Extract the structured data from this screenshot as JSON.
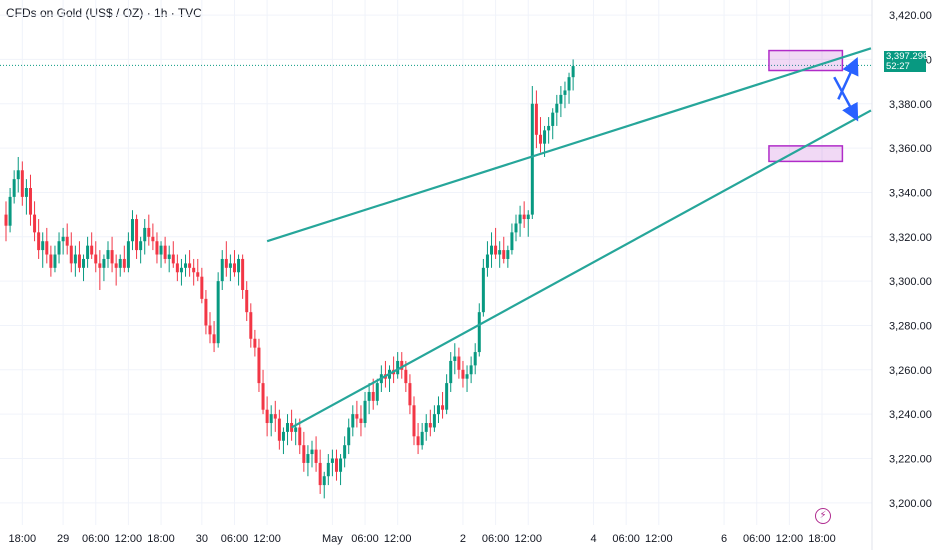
{
  "header": {
    "title": "CFDs on Gold (US$ / OZ) · 1h · TVC"
  },
  "price_tag": {
    "price": "3,397.296",
    "countdown": "52:27"
  },
  "chart_data": {
    "type": "candlestick",
    "title": "CFDs on Gold (US$ / OZ) · 1h · TVC",
    "ylim": [
      3190,
      3425
    ],
    "y_ticks": [
      "3,200.000",
      "3,220.000",
      "3,240.000",
      "3,260.000",
      "3,280.000",
      "3,300.000",
      "3,320.000",
      "3,340.000",
      "3,360.000",
      "3,380.000",
      "3,400.000",
      "3,420.000"
    ],
    "y_tick_values": [
      3200,
      3220,
      3240,
      3260,
      3280,
      3300,
      3320,
      3340,
      3360,
      3380,
      3400,
      3420
    ],
    "x_ticks": [
      "18:00",
      "29",
      "06:00",
      "12:00",
      "18:00",
      "30",
      "06:00",
      "12:00",
      "May",
      "06:00",
      "12:00",
      "2",
      "06:00",
      "12:00",
      "4",
      "06:00",
      "12:00",
      "6",
      "06:00",
      "12:00",
      "18:00"
    ],
    "x_tick_index": [
      4,
      14,
      22,
      30,
      38,
      48,
      56,
      64,
      80,
      88,
      96,
      112,
      120,
      128,
      144,
      152,
      160,
      176,
      184,
      192,
      200
    ],
    "last_price": 3397.296,
    "colors": {
      "up": "#089981",
      "down": "#f23645",
      "trend": "#26a69a",
      "zone": "#b02cc8",
      "arrow": "#2962ff"
    },
    "trendlines": [
      {
        "from": [
          64,
          3318
        ],
        "to": [
          212,
          3405
        ]
      },
      {
        "from": [
          70,
          3234
        ],
        "to": [
          212,
          3377
        ]
      }
    ],
    "zones": [
      {
        "x": [
          187,
          205
        ],
        "y": [
          3395,
          3404
        ]
      },
      {
        "x": [
          187,
          205
        ],
        "y": [
          3354,
          3361
        ]
      }
    ],
    "arrows": [
      {
        "from": [
          203,
          3392
        ],
        "to": [
          208,
          3375
        ]
      },
      {
        "from": [
          204,
          3382
        ],
        "to": [
          208,
          3398
        ]
      }
    ],
    "candles": [
      [
        3330,
        3336,
        3318,
        3325
      ],
      [
        3325,
        3342,
        3322,
        3338
      ],
      [
        3338,
        3350,
        3335,
        3346
      ],
      [
        3346,
        3356,
        3340,
        3350
      ],
      [
        3350,
        3354,
        3334,
        3338
      ],
      [
        3338,
        3346,
        3330,
        3342
      ],
      [
        3342,
        3348,
        3325,
        3330
      ],
      [
        3330,
        3336,
        3318,
        3322
      ],
      [
        3322,
        3328,
        3310,
        3314
      ],
      [
        3314,
        3322,
        3306,
        3318
      ],
      [
        3318,
        3324,
        3308,
        3312
      ],
      [
        3312,
        3316,
        3302,
        3306
      ],
      [
        3306,
        3316,
        3304,
        3312
      ],
      [
        3312,
        3322,
        3308,
        3318
      ],
      [
        3318,
        3324,
        3312,
        3320
      ],
      [
        3320,
        3326,
        3312,
        3316
      ],
      [
        3316,
        3322,
        3304,
        3308
      ],
      [
        3308,
        3316,
        3302,
        3312
      ],
      [
        3312,
        3318,
        3304,
        3306
      ],
      [
        3306,
        3312,
        3300,
        3310
      ],
      [
        3310,
        3320,
        3306,
        3316
      ],
      [
        3316,
        3322,
        3310,
        3312
      ],
      [
        3312,
        3318,
        3304,
        3308
      ],
      [
        3308,
        3314,
        3296,
        3306
      ],
      [
        3306,
        3312,
        3300,
        3310
      ],
      [
        3310,
        3318,
        3306,
        3314
      ],
      [
        3314,
        3320,
        3304,
        3308
      ],
      [
        3308,
        3312,
        3298,
        3306
      ],
      [
        3306,
        3312,
        3302,
        3310
      ],
      [
        3310,
        3316,
        3304,
        3306
      ],
      [
        3306,
        3322,
        3304,
        3318
      ],
      [
        3318,
        3332,
        3314,
        3328
      ],
      [
        3328,
        3330,
        3310,
        3314
      ],
      [
        3314,
        3320,
        3308,
        3318
      ],
      [
        3318,
        3328,
        3312,
        3324
      ],
      [
        3324,
        3330,
        3316,
        3320
      ],
      [
        3320,
        3326,
        3314,
        3318
      ],
      [
        3318,
        3322,
        3308,
        3312
      ],
      [
        3312,
        3318,
        3306,
        3316
      ],
      [
        3316,
        3320,
        3308,
        3310
      ],
      [
        3310,
        3316,
        3304,
        3312
      ],
      [
        3312,
        3318,
        3306,
        3308
      ],
      [
        3308,
        3312,
        3300,
        3304
      ],
      [
        3304,
        3310,
        3298,
        3306
      ],
      [
        3306,
        3312,
        3302,
        3308
      ],
      [
        3308,
        3314,
        3302,
        3306
      ],
      [
        3306,
        3310,
        3298,
        3304
      ],
      [
        3304,
        3310,
        3300,
        3302
      ],
      [
        3302,
        3306,
        3290,
        3292
      ],
      [
        3292,
        3296,
        3276,
        3280
      ],
      [
        3280,
        3286,
        3272,
        3276
      ],
      [
        3276,
        3282,
        3268,
        3272
      ],
      [
        3272,
        3304,
        3270,
        3300
      ],
      [
        3300,
        3314,
        3296,
        3310
      ],
      [
        3310,
        3318,
        3302,
        3306
      ],
      [
        3306,
        3312,
        3300,
        3308
      ],
      [
        3308,
        3314,
        3302,
        3304
      ],
      [
        3304,
        3312,
        3298,
        3310
      ],
      [
        3310,
        3312,
        3292,
        3296
      ],
      [
        3296,
        3300,
        3282,
        3286
      ],
      [
        3286,
        3290,
        3270,
        3274
      ],
      [
        3274,
        3278,
        3266,
        3270
      ],
      [
        3270,
        3274,
        3250,
        3254
      ],
      [
        3254,
        3260,
        3240,
        3242
      ],
      [
        3242,
        3248,
        3230,
        3236
      ],
      [
        3236,
        3244,
        3230,
        3240
      ],
      [
        3240,
        3246,
        3232,
        3238
      ],
      [
        3238,
        3242,
        3224,
        3228
      ],
      [
        3228,
        3234,
        3222,
        3232
      ],
      [
        3232,
        3240,
        3226,
        3236
      ],
      [
        3236,
        3242,
        3228,
        3232
      ],
      [
        3232,
        3238,
        3226,
        3234
      ],
      [
        3234,
        3238,
        3222,
        3226
      ],
      [
        3226,
        3232,
        3214,
        3218
      ],
      [
        3218,
        3226,
        3212,
        3222
      ],
      [
        3222,
        3228,
        3216,
        3224
      ],
      [
        3224,
        3230,
        3214,
        3218
      ],
      [
        3218,
        3224,
        3204,
        3208
      ],
      [
        3208,
        3214,
        3202,
        3212
      ],
      [
        3212,
        3222,
        3208,
        3218
      ],
      [
        3218,
        3224,
        3212,
        3220
      ],
      [
        3220,
        3224,
        3210,
        3214
      ],
      [
        3214,
        3222,
        3208,
        3220
      ],
      [
        3220,
        3230,
        3216,
        3226
      ],
      [
        3226,
        3238,
        3222,
        3234
      ],
      [
        3234,
        3244,
        3230,
        3240
      ],
      [
        3240,
        3246,
        3234,
        3238
      ],
      [
        3238,
        3244,
        3230,
        3236
      ],
      [
        3236,
        3250,
        3234,
        3246
      ],
      [
        3246,
        3254,
        3240,
        3250
      ],
      [
        3250,
        3256,
        3242,
        3246
      ],
      [
        3246,
        3256,
        3244,
        3254
      ],
      [
        3254,
        3262,
        3250,
        3258
      ],
      [
        3258,
        3264,
        3252,
        3256
      ],
      [
        3256,
        3262,
        3250,
        3260
      ],
      [
        3260,
        3266,
        3254,
        3258
      ],
      [
        3258,
        3268,
        3256,
        3264
      ],
      [
        3264,
        3268,
        3256,
        3260
      ],
      [
        3260,
        3264,
        3250,
        3254
      ],
      [
        3254,
        3258,
        3240,
        3244
      ],
      [
        3244,
        3248,
        3226,
        3230
      ],
      [
        3230,
        3236,
        3222,
        3226
      ],
      [
        3226,
        3236,
        3224,
        3232
      ],
      [
        3232,
        3240,
        3228,
        3236
      ],
      [
        3236,
        3242,
        3230,
        3234
      ],
      [
        3234,
        3244,
        3232,
        3240
      ],
      [
        3240,
        3248,
        3236,
        3244
      ],
      [
        3244,
        3250,
        3238,
        3242
      ],
      [
        3242,
        3258,
        3240,
        3254
      ],
      [
        3254,
        3268,
        3250,
        3264
      ],
      [
        3264,
        3272,
        3258,
        3266
      ],
      [
        3266,
        3270,
        3256,
        3260
      ],
      [
        3260,
        3264,
        3252,
        3256
      ],
      [
        3256,
        3262,
        3250,
        3258
      ],
      [
        3258,
        3266,
        3254,
        3262
      ],
      [
        3262,
        3272,
        3258,
        3268
      ],
      [
        3268,
        3290,
        3266,
        3286
      ],
      [
        3286,
        3310,
        3284,
        3306
      ],
      [
        3306,
        3318,
        3302,
        3312
      ],
      [
        3312,
        3322,
        3306,
        3316
      ],
      [
        3316,
        3324,
        3310,
        3312
      ],
      [
        3312,
        3318,
        3306,
        3314
      ],
      [
        3314,
        3320,
        3308,
        3310
      ],
      [
        3310,
        3316,
        3306,
        3314
      ],
      [
        3314,
        3326,
        3312,
        3322
      ],
      [
        3322,
        3330,
        3318,
        3326
      ],
      [
        3326,
        3334,
        3320,
        3330
      ],
      [
        3330,
        3336,
        3324,
        3328
      ],
      [
        3328,
        3332,
        3320,
        3330
      ],
      [
        3330,
        3388,
        3328,
        3380
      ],
      [
        3380,
        3386,
        3360,
        3366
      ],
      [
        3366,
        3374,
        3358,
        3362
      ],
      [
        3362,
        3370,
        3356,
        3368
      ],
      [
        3368,
        3374,
        3362,
        3370
      ],
      [
        3370,
        3378,
        3364,
        3376
      ],
      [
        3376,
        3384,
        3370,
        3380
      ],
      [
        3380,
        3388,
        3374,
        3384
      ],
      [
        3384,
        3390,
        3378,
        3386
      ],
      [
        3386,
        3394,
        3380,
        3392
      ],
      [
        3392,
        3400,
        3386,
        3397
      ]
    ]
  }
}
